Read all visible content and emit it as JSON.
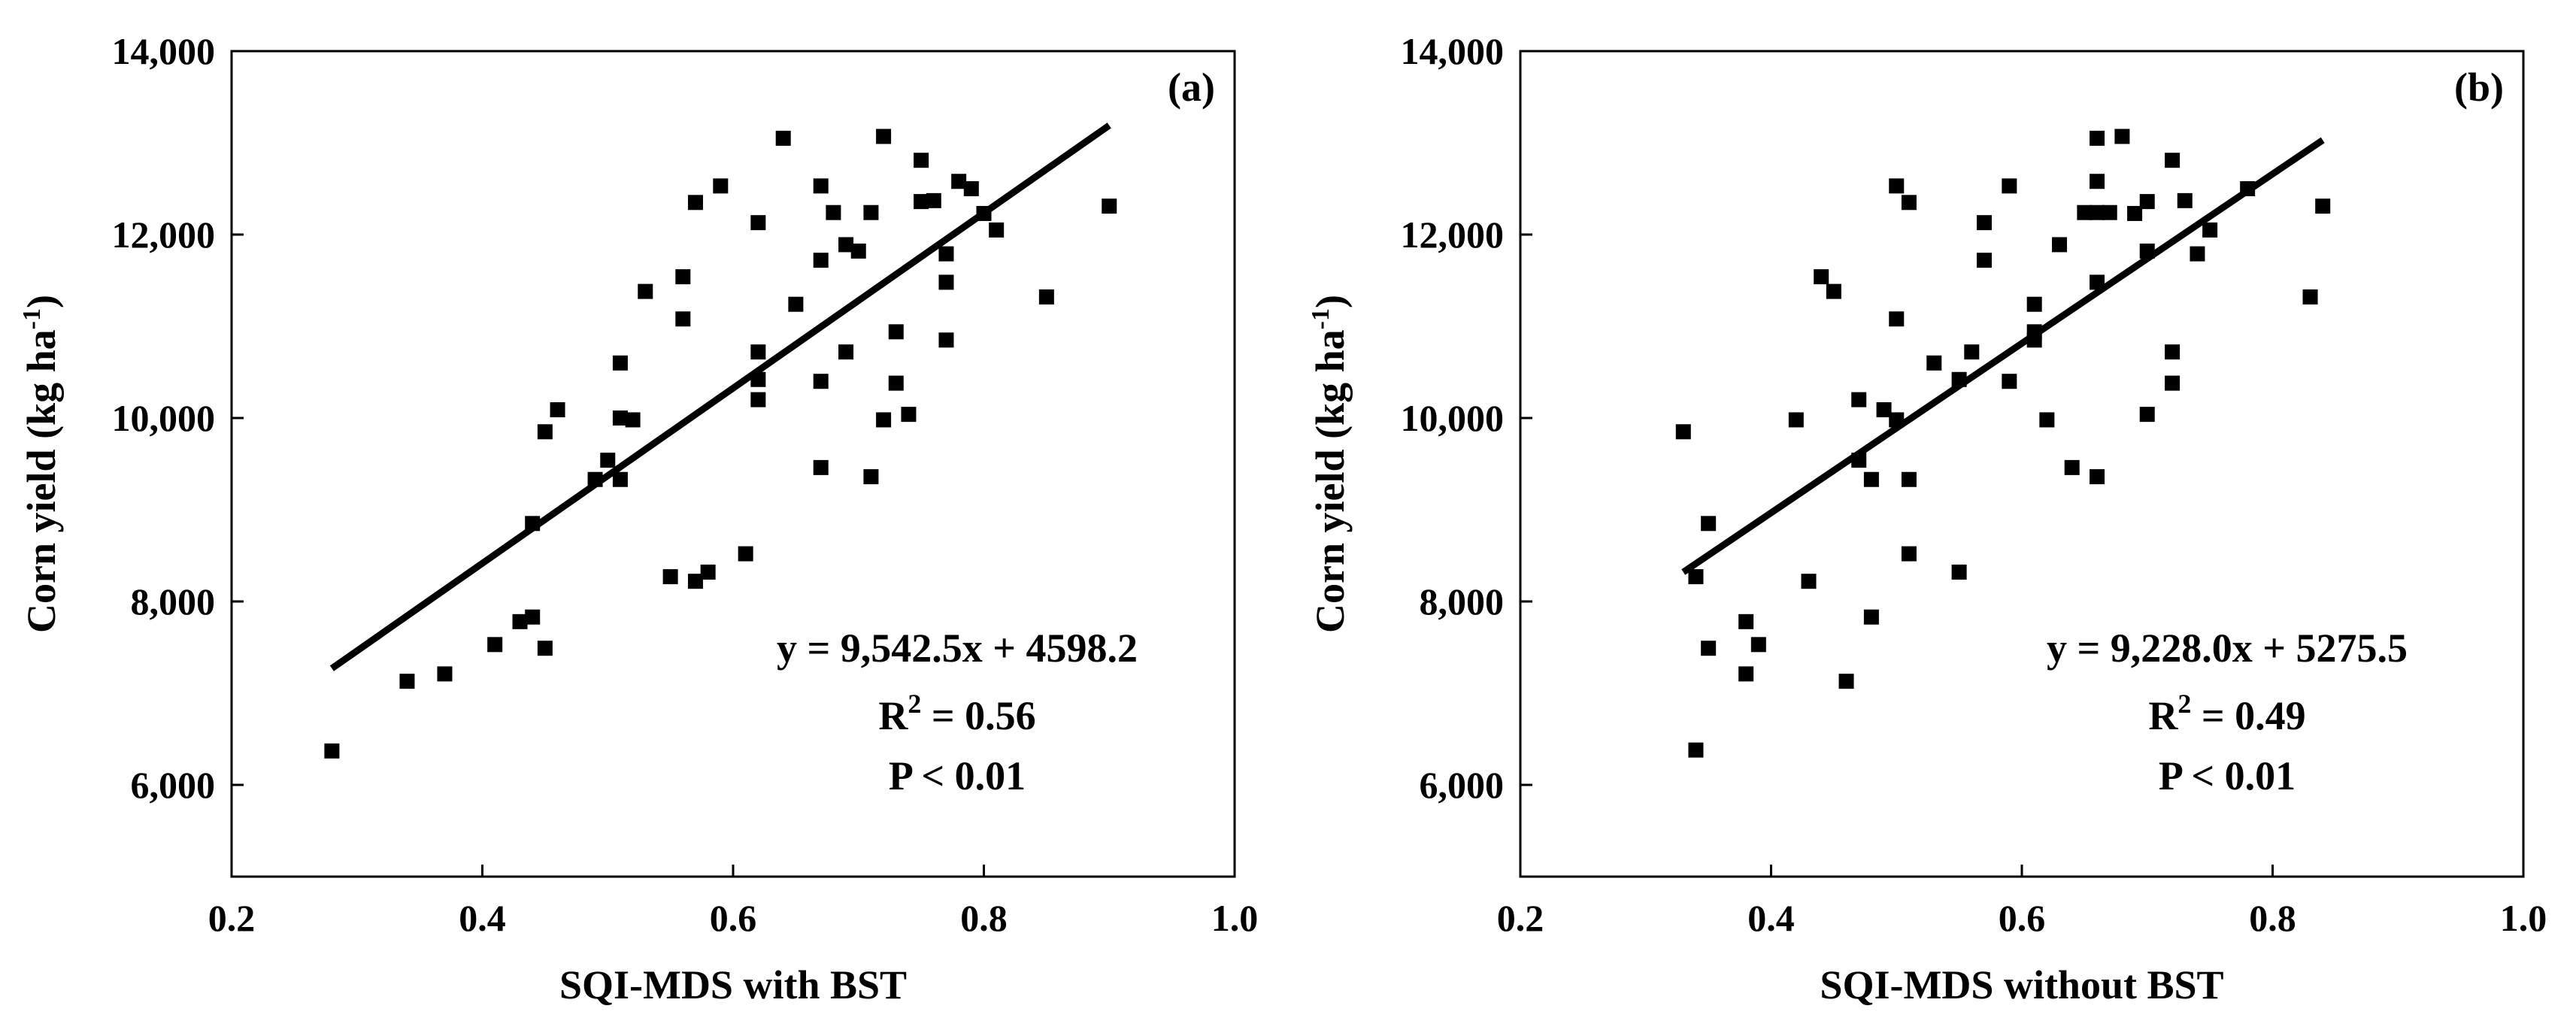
{
  "chart_data": [
    {
      "type": "scatter",
      "panel_label": "(a)",
      "xlabel": "SQI-MDS with BST",
      "ylabel_main": "Corn yield (kg ha",
      "ylabel_sup": "-1",
      "ylabel_close": ")",
      "xlim": [
        0.2,
        1.0
      ],
      "ylim": [
        5000,
        14000
      ],
      "xticks": [
        0.2,
        0.4,
        0.6,
        0.8,
        1.0
      ],
      "xtick_labels": [
        "0.2",
        "0.4",
        "0.6",
        "0.8",
        "1.0"
      ],
      "yticks": [
        6000,
        8000,
        10000,
        12000,
        14000
      ],
      "ytick_labels": [
        "6,000",
        "8,000",
        "10,000",
        "12,000",
        "14,000"
      ],
      "equation": "y = 9,542.5x + 4598.2",
      "r2_prefix": "R",
      "r2_sup": "2",
      "r2_value": " = 0.56",
      "p_text": "P < 0.01",
      "fit": {
        "x": [
          0.28,
          0.9
        ],
        "y": [
          7270,
          13190
        ]
      },
      "points": [
        [
          0.28,
          6370
        ],
        [
          0.34,
          7130
        ],
        [
          0.37,
          7210
        ],
        [
          0.41,
          7530
        ],
        [
          0.43,
          7780
        ],
        [
          0.44,
          7830
        ],
        [
          0.44,
          8850
        ],
        [
          0.45,
          7490
        ],
        [
          0.45,
          9850
        ],
        [
          0.46,
          10090
        ],
        [
          0.49,
          9330
        ],
        [
          0.5,
          9540
        ],
        [
          0.51,
          9330
        ],
        [
          0.51,
          10000
        ],
        [
          0.51,
          10600
        ],
        [
          0.52,
          9980
        ],
        [
          0.53,
          11380
        ],
        [
          0.55,
          8270
        ],
        [
          0.56,
          11080
        ],
        [
          0.56,
          11540
        ],
        [
          0.57,
          8220
        ],
        [
          0.57,
          12350
        ],
        [
          0.58,
          8320
        ],
        [
          0.59,
          12530
        ],
        [
          0.61,
          8520
        ],
        [
          0.62,
          10200
        ],
        [
          0.62,
          10420
        ],
        [
          0.62,
          10720
        ],
        [
          0.62,
          12130
        ],
        [
          0.64,
          13050
        ],
        [
          0.65,
          11240
        ],
        [
          0.67,
          9460
        ],
        [
          0.67,
          10400
        ],
        [
          0.67,
          11720
        ],
        [
          0.67,
          12530
        ],
        [
          0.68,
          12240
        ],
        [
          0.69,
          10720
        ],
        [
          0.69,
          11890
        ],
        [
          0.7,
          11820
        ],
        [
          0.71,
          9360
        ],
        [
          0.71,
          12240
        ],
        [
          0.72,
          9980
        ],
        [
          0.72,
          13070
        ],
        [
          0.73,
          10380
        ],
        [
          0.73,
          10940
        ],
        [
          0.74,
          10040
        ],
        [
          0.75,
          12360
        ],
        [
          0.75,
          12810
        ],
        [
          0.76,
          12370
        ],
        [
          0.77,
          10850
        ],
        [
          0.77,
          11480
        ],
        [
          0.77,
          11790
        ],
        [
          0.78,
          12580
        ],
        [
          0.79,
          12500
        ],
        [
          0.8,
          12230
        ],
        [
          0.81,
          12050
        ],
        [
          0.85,
          11320
        ],
        [
          0.9,
          12310
        ]
      ]
    },
    {
      "type": "scatter",
      "panel_label": "(b)",
      "xlabel": "SQI-MDS without BST",
      "ylabel_main": "Corn yield (kg ha",
      "ylabel_sup": "-1",
      "ylabel_close": ")",
      "xlim": [
        0.2,
        1.0
      ],
      "ylim": [
        5000,
        14000
      ],
      "xticks": [
        0.2,
        0.4,
        0.6,
        0.8,
        1.0
      ],
      "xtick_labels": [
        "0.2",
        "0.4",
        "0.6",
        "0.8",
        "1.0"
      ],
      "yticks": [
        6000,
        8000,
        10000,
        12000,
        14000
      ],
      "ytick_labels": [
        "6,000",
        "8,000",
        "10,000",
        "12,000",
        "14,000"
      ],
      "equation": "y = 9,228.0x + 5275.5",
      "r2_prefix": "R",
      "r2_sup": "2",
      "r2_value": " = 0.49",
      "p_text": "P < 0.01",
      "fit": {
        "x": [
          0.33,
          0.84
        ],
        "y": [
          8320,
          13030
        ]
      },
      "points": [
        [
          0.33,
          9850
        ],
        [
          0.34,
          6380
        ],
        [
          0.34,
          8270
        ],
        [
          0.35,
          7490
        ],
        [
          0.35,
          8850
        ],
        [
          0.38,
          7210
        ],
        [
          0.38,
          7780
        ],
        [
          0.39,
          7530
        ],
        [
          0.42,
          9980
        ],
        [
          0.43,
          8220
        ],
        [
          0.44,
          11540
        ],
        [
          0.45,
          11380
        ],
        [
          0.46,
          7130
        ],
        [
          0.47,
          9540
        ],
        [
          0.47,
          10200
        ],
        [
          0.48,
          7830
        ],
        [
          0.48,
          9330
        ],
        [
          0.49,
          10090
        ],
        [
          0.5,
          9980
        ],
        [
          0.5,
          11080
        ],
        [
          0.5,
          12530
        ],
        [
          0.51,
          8520
        ],
        [
          0.51,
          9330
        ],
        [
          0.51,
          12350
        ],
        [
          0.53,
          10600
        ],
        [
          0.55,
          8320
        ],
        [
          0.55,
          10420
        ],
        [
          0.56,
          10720
        ],
        [
          0.57,
          11720
        ],
        [
          0.57,
          12130
        ],
        [
          0.59,
          10400
        ],
        [
          0.59,
          12530
        ],
        [
          0.61,
          10850
        ],
        [
          0.61,
          10940
        ],
        [
          0.61,
          11240
        ],
        [
          0.62,
          9980
        ],
        [
          0.63,
          11890
        ],
        [
          0.64,
          9460
        ],
        [
          0.65,
          12240
        ],
        [
          0.66,
          9360
        ],
        [
          0.66,
          11480
        ],
        [
          0.66,
          12240
        ],
        [
          0.66,
          12580
        ],
        [
          0.66,
          13050
        ],
        [
          0.67,
          12240
        ],
        [
          0.68,
          13070
        ],
        [
          0.69,
          12230
        ],
        [
          0.7,
          10040
        ],
        [
          0.7,
          11820
        ],
        [
          0.7,
          12360
        ],
        [
          0.72,
          10380
        ],
        [
          0.72,
          10720
        ],
        [
          0.72,
          12810
        ],
        [
          0.73,
          12370
        ],
        [
          0.74,
          11790
        ],
        [
          0.75,
          12050
        ],
        [
          0.78,
          12500
        ],
        [
          0.83,
          11320
        ],
        [
          0.84,
          12310
        ]
      ]
    }
  ]
}
